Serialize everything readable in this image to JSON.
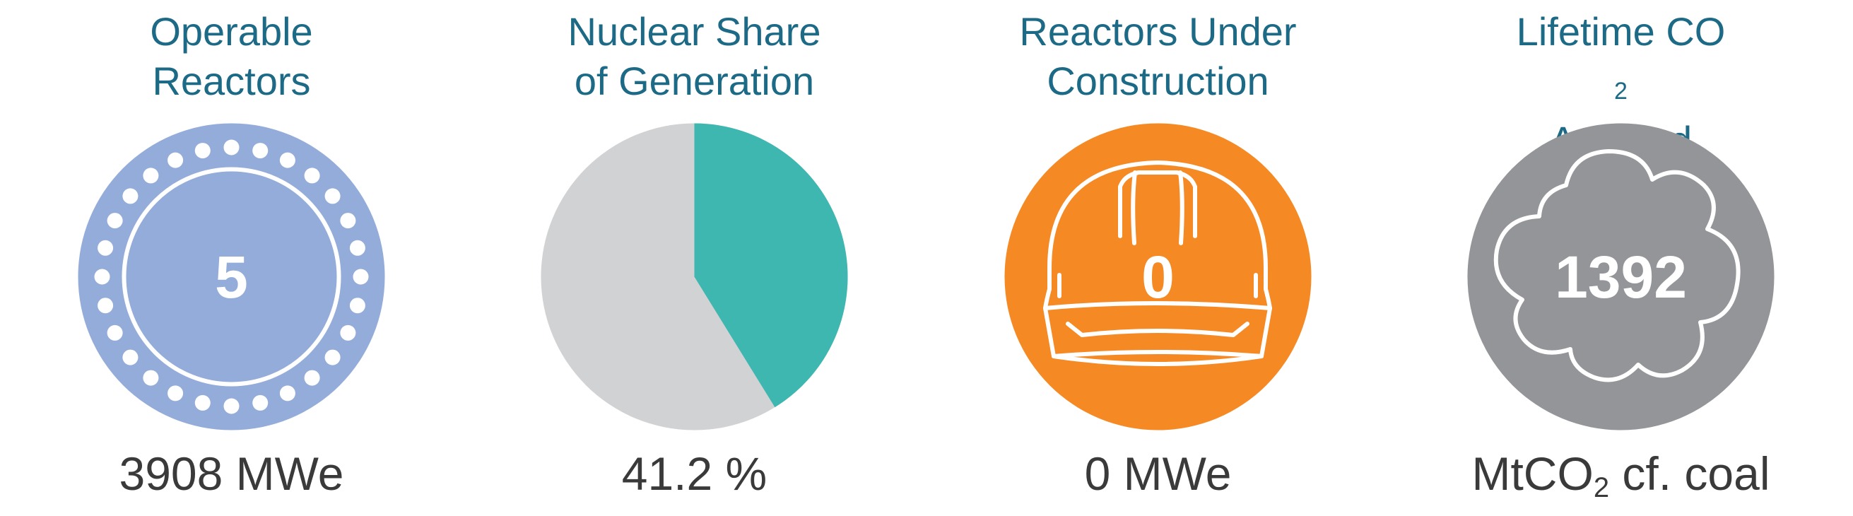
{
  "colors": {
    "title": "#1c6a86",
    "caption": "#3a3a3a",
    "reactors": "#94acd9",
    "pie_nuclear": "#3db7b0",
    "pie_other": "#d1d2d4",
    "construction": "#f58a25",
    "co2": "#939598"
  },
  "panels": {
    "reactors": {
      "title_line1": "Operable",
      "title_line2": "Reactors",
      "value": "5",
      "caption": "3908 MWe",
      "icon": "reactor-ring-icon"
    },
    "share": {
      "title_line1": "Nuclear Share",
      "title_line2": "of Generation",
      "caption": "41.2 %",
      "share_fraction": 0.412
    },
    "construction": {
      "title_line1": "Reactors Under",
      "title_line2": "Construction",
      "value": "0",
      "caption": "0 MWe",
      "icon": "hard-hat-icon"
    },
    "co2": {
      "title_main": "Lifetime CO",
      "title_sub": "2",
      "title_line2": "Avoided",
      "value": "1392",
      "caption_main": "MtCO",
      "caption_sub": "2",
      "caption_rest": " cf. coal",
      "icon": "cloud-icon"
    }
  }
}
